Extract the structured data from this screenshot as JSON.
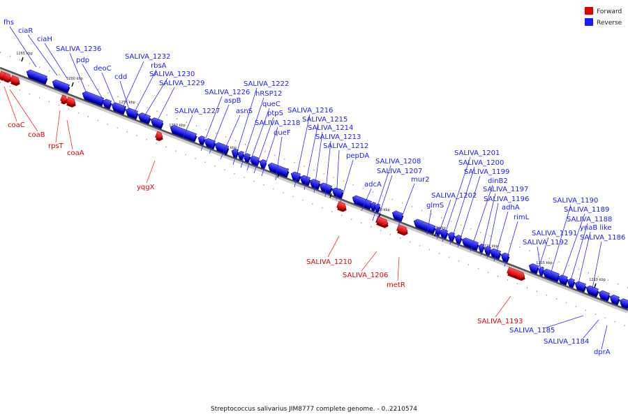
{
  "legend": {
    "forward_label": "Forward",
    "reverse_label": "Reverse",
    "forward_color": "#e00000",
    "reverse_color": "#1a1aff"
  },
  "caption": "Streptococcus salivarius JIM8777 complete genome. - 0..2210574",
  "ticks": [
    "1265 kbp",
    "1260 kbp",
    "1255 kbp",
    "1250 kbp",
    "1245 kbp",
    "1240 kbp",
    "1235 kbp",
    "1230 kbp",
    "1225 kbp",
    "1220 kbp",
    "1215 kbp",
    "1210 kbp"
  ],
  "reverse_genes": [
    "fhs",
    "ciaR",
    "ciaH",
    "SALIVA_1236",
    "pdp",
    "deoC",
    "cdd",
    "SALIVA_1232",
    "rbsA",
    "SALIVA_1230",
    "SALIVA_1229",
    "SALIVA_1227",
    "SALIVA_1226",
    "aspB",
    "asnS",
    "SALIVA_1222",
    "hRSP12",
    "queC",
    "ptpS",
    "SALIVA_1218",
    "queF",
    "SALIVA_1216",
    "SALIVA_1215",
    "SALIVA_1214",
    "SALIVA_1213",
    "SALIVA_1212",
    "pepDA",
    "adcA",
    "SALIVA_1208",
    "SALIVA_1207",
    "mur2",
    "glmS",
    "SALIVA_1202",
    "SALIVA_1201",
    "SALIVA_1200",
    "SALIVA_1199",
    "dinB2",
    "SALIVA_1197",
    "SALIVA_1196",
    "adhA",
    "rimL",
    "SALIVA_1191",
    "SALIVA_1192",
    "SALIVA_1190",
    "SALIVA_1189",
    "SALIVA_1188",
    "ynaB like",
    "SALIVA_1186",
    "SALIVA_1185",
    "SALIVA_1184",
    "dprA"
  ],
  "forward_genes": [
    "coaC",
    "coaB",
    "rpsT",
    "coaA",
    "yqgX",
    "SALIVA_1210",
    "SALIVA_1206",
    "metR",
    "SALIVA_1193"
  ]
}
